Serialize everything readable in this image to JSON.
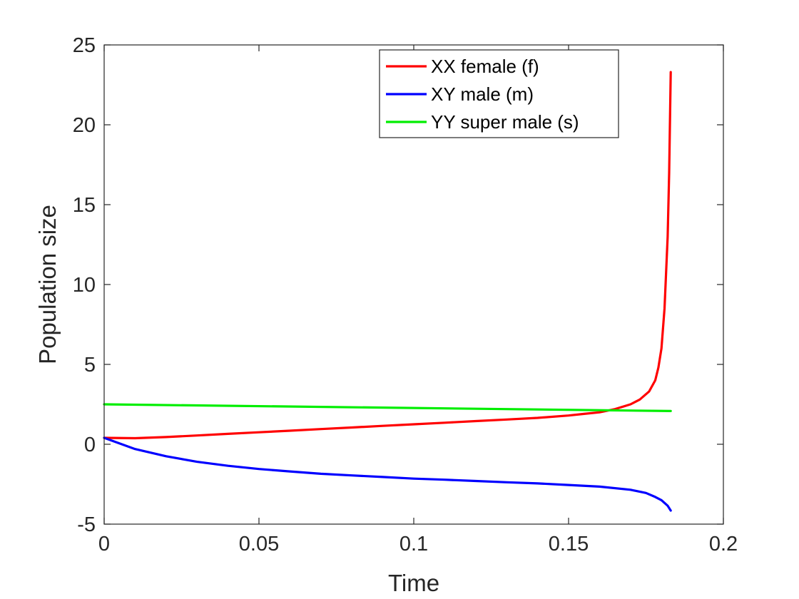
{
  "chart_data": {
    "type": "line",
    "title": "",
    "xlabel": "Time",
    "ylabel": "Population size",
    "xlim": [
      0,
      0.2
    ],
    "ylim": [
      -5,
      25
    ],
    "xticks": [
      0,
      0.05,
      0.1,
      0.15,
      0.2
    ],
    "xtick_labels": [
      "0",
      "0.05",
      "0.1",
      "0.15",
      "0.2"
    ],
    "yticks": [
      -5,
      0,
      5,
      10,
      15,
      20,
      25
    ],
    "ytick_labels": [
      "-5",
      "0",
      "5",
      "10",
      "15",
      "20",
      "25"
    ],
    "grid": false,
    "legend_position": "top-right",
    "series": [
      {
        "name": "XX female (f)",
        "color": "#ff0000",
        "x": [
          0,
          0.01,
          0.02,
          0.03,
          0.04,
          0.05,
          0.06,
          0.07,
          0.08,
          0.09,
          0.1,
          0.11,
          0.12,
          0.13,
          0.14,
          0.15,
          0.155,
          0.16,
          0.165,
          0.17,
          0.173,
          0.176,
          0.178,
          0.179,
          0.18,
          0.181,
          0.182,
          0.1825,
          0.183
        ],
        "y": [
          0.4,
          0.38,
          0.45,
          0.55,
          0.65,
          0.75,
          0.85,
          0.95,
          1.05,
          1.15,
          1.25,
          1.35,
          1.45,
          1.55,
          1.65,
          1.8,
          1.9,
          2.0,
          2.2,
          2.5,
          2.8,
          3.3,
          4.0,
          4.8,
          6.0,
          8.5,
          13.0,
          17.0,
          23.3
        ]
      },
      {
        "name": "XY male (m)",
        "color": "#0000ff",
        "x": [
          0,
          0.005,
          0.01,
          0.02,
          0.03,
          0.04,
          0.05,
          0.06,
          0.07,
          0.08,
          0.09,
          0.1,
          0.11,
          0.12,
          0.13,
          0.14,
          0.15,
          0.16,
          0.17,
          0.175,
          0.178,
          0.18,
          0.182,
          0.183
        ],
        "y": [
          0.4,
          0.05,
          -0.3,
          -0.75,
          -1.1,
          -1.35,
          -1.55,
          -1.7,
          -1.85,
          -1.95,
          -2.05,
          -2.15,
          -2.22,
          -2.3,
          -2.38,
          -2.45,
          -2.55,
          -2.65,
          -2.85,
          -3.05,
          -3.3,
          -3.5,
          -3.85,
          -4.15
        ]
      },
      {
        "name": "YY super male (s)",
        "color": "#00ee00",
        "x": [
          0,
          0.183
        ],
        "y": [
          2.5,
          2.08
        ]
      }
    ]
  }
}
